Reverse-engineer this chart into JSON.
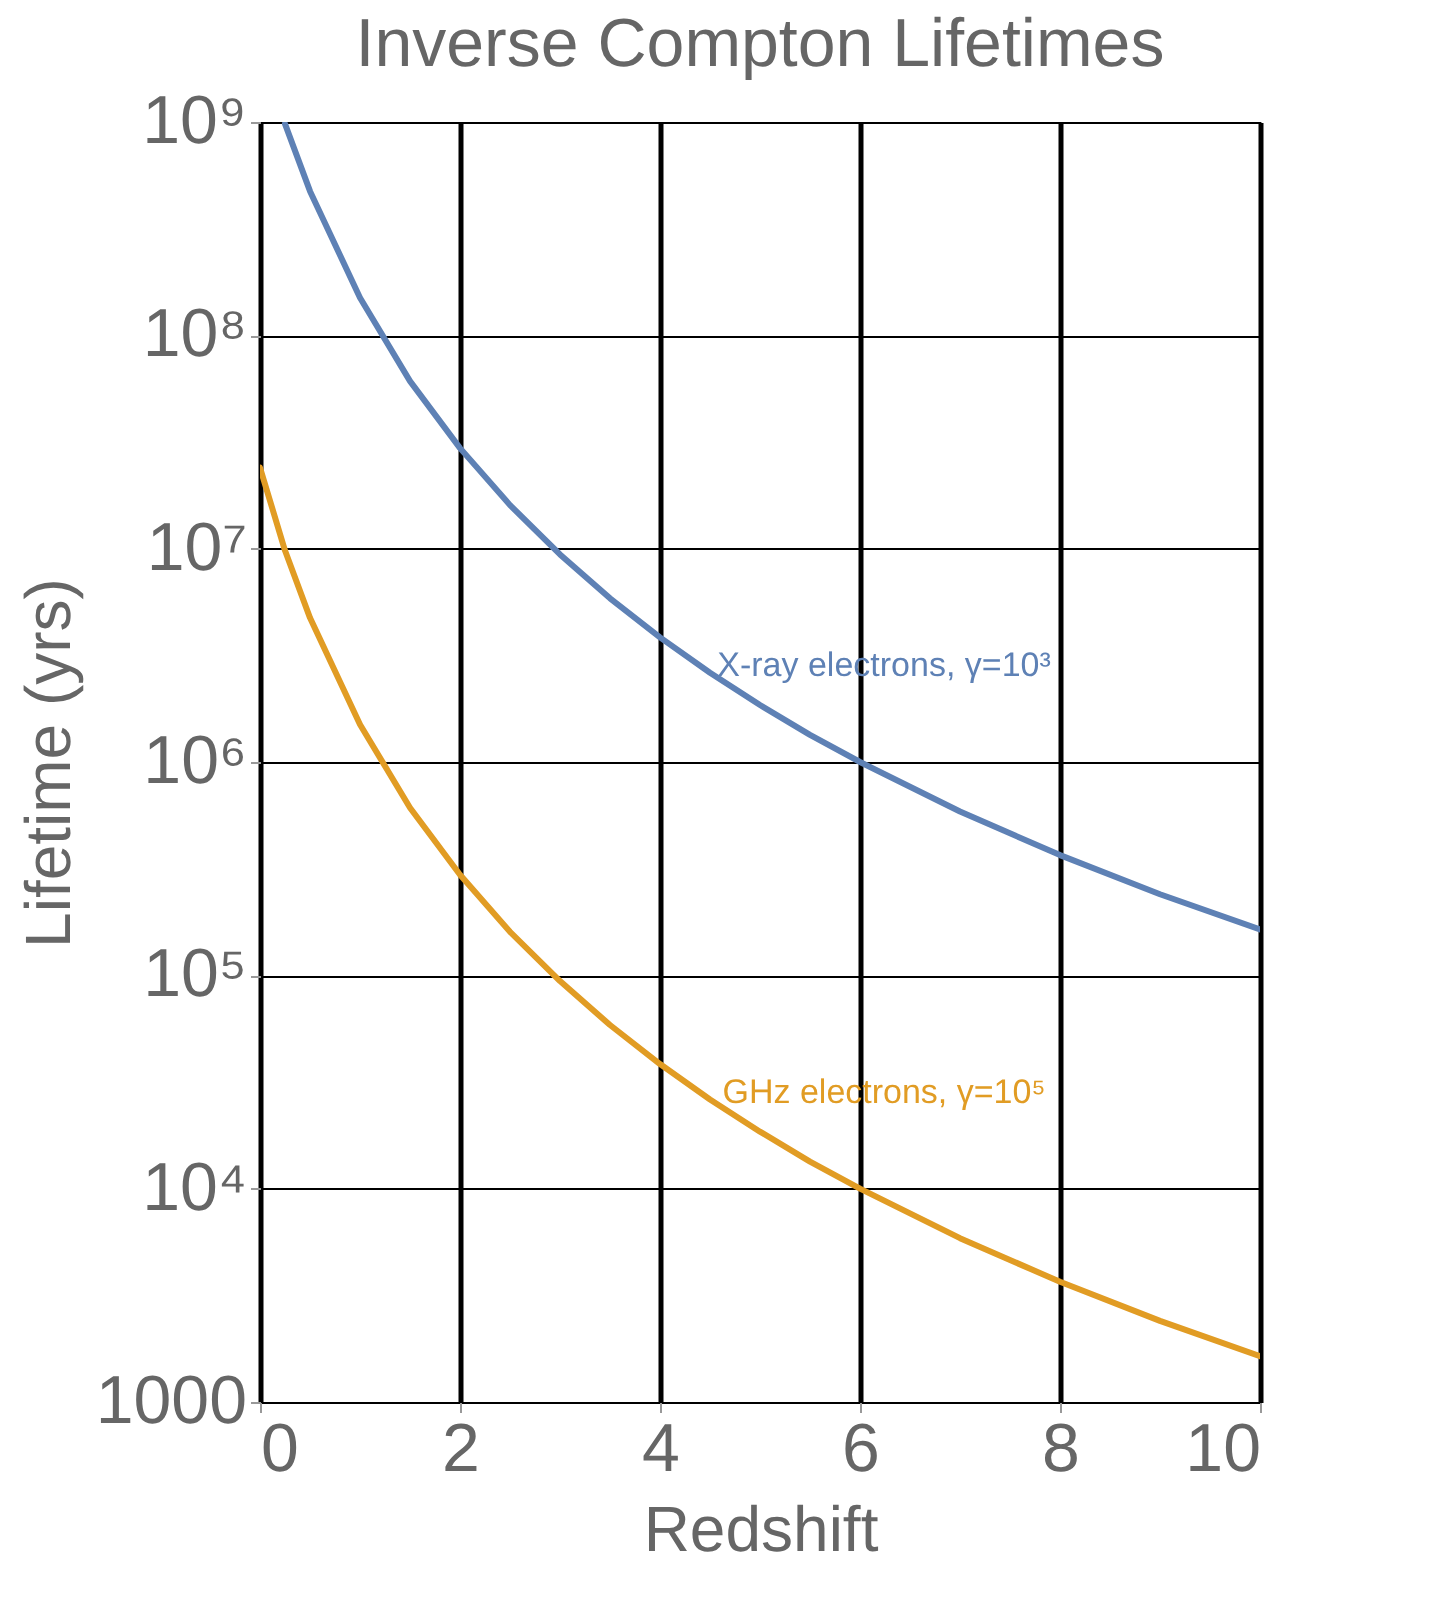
{
  "chart_data": {
    "type": "line",
    "title": "Inverse Compton Lifetimes",
    "xlabel": "Redshift",
    "ylabel": "Lifetime (yrs)",
    "series": [
      {
        "name": "X-ray electrons, γ=10³",
        "color": "#5e81b5",
        "x": [
          0.25,
          0.5,
          1,
          1.5,
          2,
          2.5,
          3,
          3.5,
          4,
          4.5,
          5,
          5.5,
          6,
          7,
          8,
          9,
          10
        ],
        "values": [
          980000000,
          474000000,
          150000000,
          61000000,
          29600000,
          16000000,
          9400000,
          5850000,
          3840000,
          2620000,
          1850000,
          1340000,
          1000000,
          586000,
          366000,
          240000,
          164000
        ]
      },
      {
        "name": "GHz electrons, γ=10⁵",
        "color": "#e19c24",
        "x": [
          0,
          0.25,
          0.5,
          1,
          1.5,
          2,
          2.5,
          3,
          3.5,
          4,
          4.5,
          5,
          5.5,
          6,
          7,
          8,
          9,
          10
        ],
        "values": [
          24000000,
          9800000,
          4740000,
          1500000,
          610000,
          296000,
          160000,
          94000,
          58500,
          38400,
          26200,
          18500,
          13400,
          10000,
          5860,
          3660,
          2400,
          1640
        ]
      }
    ],
    "xlim": [
      0,
      10
    ],
    "xticks": [
      0,
      2,
      4,
      6,
      8,
      10
    ],
    "ylim": [
      1000,
      1000000000
    ],
    "yticks": [
      1000,
      {
        "value": 10000,
        "label": "10⁴"
      },
      {
        "value": 100000,
        "label": "10⁵"
      },
      {
        "value": 1000000,
        "label": "10⁶"
      },
      {
        "value": 10000000,
        "label": "10⁷"
      },
      {
        "value": 100000000,
        "label": "10⁸"
      },
      {
        "value": 1000000000,
        "label": "10⁹"
      }
    ],
    "log": "y",
    "grid": true,
    "marker": "none",
    "line_style": "solid"
  }
}
